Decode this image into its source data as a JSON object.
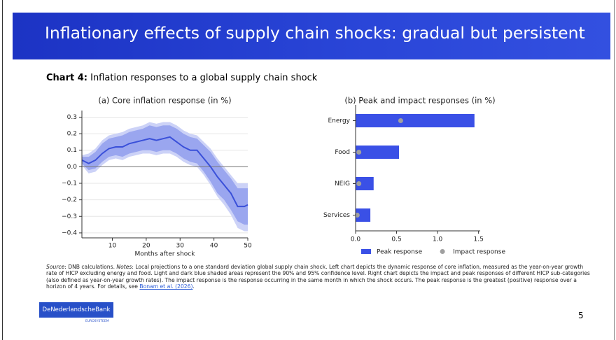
{
  "header": {
    "title": "Inflationary effects of supply chain shocks: gradual but persistent"
  },
  "chart_caption": {
    "label": "Chart 4:",
    "text": "Inflation responses to a global supply chain shock"
  },
  "chart_data": [
    {
      "type": "line",
      "title": "(a) Core inflation response (in %)",
      "xlabel": "Months after shock",
      "x": [
        1,
        3,
        5,
        7,
        9,
        11,
        13,
        15,
        17,
        19,
        21,
        23,
        25,
        27,
        29,
        31,
        33,
        35,
        37,
        39,
        41,
        43,
        45,
        47,
        49,
        50
      ],
      "values": [
        0.04,
        0.02,
        0.04,
        0.08,
        0.11,
        0.12,
        0.12,
        0.14,
        0.15,
        0.16,
        0.17,
        0.16,
        0.17,
        0.18,
        0.15,
        0.12,
        0.1,
        0.1,
        0.05,
        0.0,
        -0.06,
        -0.11,
        -0.16,
        -0.24,
        -0.24,
        -0.23
      ],
      "color": "#3a50d9",
      "band_90": {
        "color": "#9aa6ef",
        "upper": [
          0.06,
          0.06,
          0.09,
          0.14,
          0.17,
          0.18,
          0.19,
          0.21,
          0.22,
          0.23,
          0.25,
          0.24,
          0.25,
          0.25,
          0.23,
          0.2,
          0.18,
          0.17,
          0.13,
          0.09,
          0.03,
          -0.02,
          -0.07,
          -0.13,
          -0.13,
          -0.13
        ],
        "lower": [
          0.02,
          -0.02,
          -0.01,
          0.03,
          0.06,
          0.07,
          0.06,
          0.08,
          0.09,
          0.1,
          0.1,
          0.09,
          0.1,
          0.1,
          0.08,
          0.05,
          0.03,
          0.02,
          -0.03,
          -0.09,
          -0.16,
          -0.2,
          -0.26,
          -0.33,
          -0.35,
          -0.35
        ]
      },
      "band_95": {
        "color": "#ccd2f7",
        "upper": [
          0.07,
          0.08,
          0.11,
          0.16,
          0.19,
          0.2,
          0.21,
          0.23,
          0.24,
          0.25,
          0.27,
          0.26,
          0.27,
          0.27,
          0.25,
          0.22,
          0.2,
          0.19,
          0.15,
          0.11,
          0.05,
          0.0,
          -0.05,
          -0.1,
          -0.1,
          -0.1
        ],
        "lower": [
          0.01,
          -0.04,
          -0.03,
          0.01,
          0.04,
          0.05,
          0.04,
          0.06,
          0.07,
          0.08,
          0.08,
          0.07,
          0.08,
          0.08,
          0.06,
          0.03,
          0.01,
          0.0,
          -0.05,
          -0.11,
          -0.18,
          -0.23,
          -0.29,
          -0.37,
          -0.39,
          -0.39
        ]
      },
      "xlim": [
        1,
        50
      ],
      "xticks": [
        10,
        20,
        30,
        40,
        50
      ],
      "ylim": [
        -0.43,
        0.34
      ],
      "yticks": [
        {
          "value": -0.4,
          "label": "−0.4"
        },
        {
          "value": -0.3,
          "label": "−0.3"
        },
        {
          "value": -0.2,
          "label": "−0.2"
        },
        {
          "value": -0.1,
          "label": "−0.1"
        },
        {
          "value": 0,
          "label": "0.0"
        },
        0.1,
        0.2,
        0.3
      ],
      "grid": true,
      "zero_line": true
    },
    {
      "type": "hbar",
      "title": "(b) Peak and impact responses (in %)",
      "categories": [
        "Energy",
        "Food",
        "NEIG",
        "Services"
      ],
      "series": [
        {
          "name": "Peak response",
          "color": "#3a50e6",
          "style": "bar",
          "values": [
            1.45,
            0.53,
            0.22,
            0.18
          ]
        },
        {
          "name": "Impact response",
          "color": "#a0a0a0",
          "style": "dot",
          "values": [
            0.55,
            0.04,
            0.04,
            0.02
          ]
        }
      ],
      "xlim": [
        0,
        1.52
      ],
      "xticks": [
        {
          "value": 0,
          "label": "0.0"
        },
        0.5,
        {
          "value": 1,
          "label": "1.0"
        },
        1.5
      ],
      "legend": "bottom"
    }
  ],
  "source": {
    "label": "Source",
    "text1": ": DNB calculations. ",
    "notes_label": "Notes",
    "text2": ": Local projections to a one standard deviation global supply chain shock. Left chart depicts the dynamic response of core inflation, measured as the year-on-year growth rate of HICP excluding energy and food. Light and dark blue shaded areas represent the 90% and 95% confidence level. Right chart depicts the impact and peak responses of different HICP sub-categories (also defined as year-on-year growth rates). The impact response is the response occurring in the same month in which the shock occurs. The peak response is the greatest (positive) response over a horizon of 4 years. For details, see ",
    "link": "Bonam et al. (2026)",
    "text3": "."
  },
  "logo": {
    "name": "DeNederlandscheBank",
    "sub": "EUROSYSTEEM"
  },
  "page_number": 5
}
